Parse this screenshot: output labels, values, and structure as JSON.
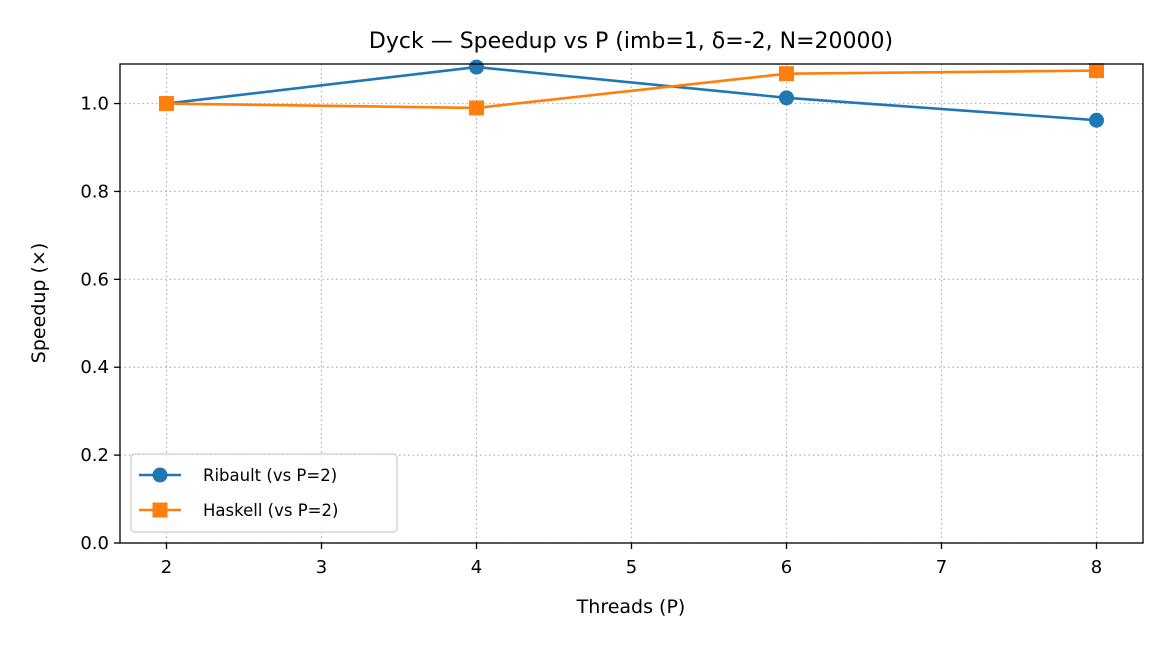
{
  "chart_data": {
    "type": "line",
    "title": "Dyck — Speedup vs P (imb=1, δ=-2, N=20000)",
    "xlabel": "Threads (P)",
    "ylabel": "Speedup (×)",
    "xlim": [
      1.7,
      8.3
    ],
    "ylim": [
      0.0,
      1.09
    ],
    "xticks": [
      2,
      3,
      4,
      5,
      6,
      7,
      8
    ],
    "yticks": [
      0.0,
      0.2,
      0.4,
      0.6,
      0.8,
      1.0
    ],
    "ytick_labels": [
      "0.0",
      "0.2",
      "0.4",
      "0.6",
      "0.8",
      "1.0"
    ],
    "grid": true,
    "legend_position": "lower-left",
    "x": [
      2,
      4,
      6,
      8
    ],
    "series": [
      {
        "name": "Ribault (vs P=2)",
        "values": [
          1.0,
          1.083,
          1.013,
          0.962
        ],
        "color": "#1f77b4",
        "marker": "circle"
      },
      {
        "name": "Haskell (vs P=2)",
        "values": [
          1.0,
          0.99,
          1.068,
          1.075
        ],
        "color": "#ff7f0e",
        "marker": "square"
      }
    ]
  }
}
